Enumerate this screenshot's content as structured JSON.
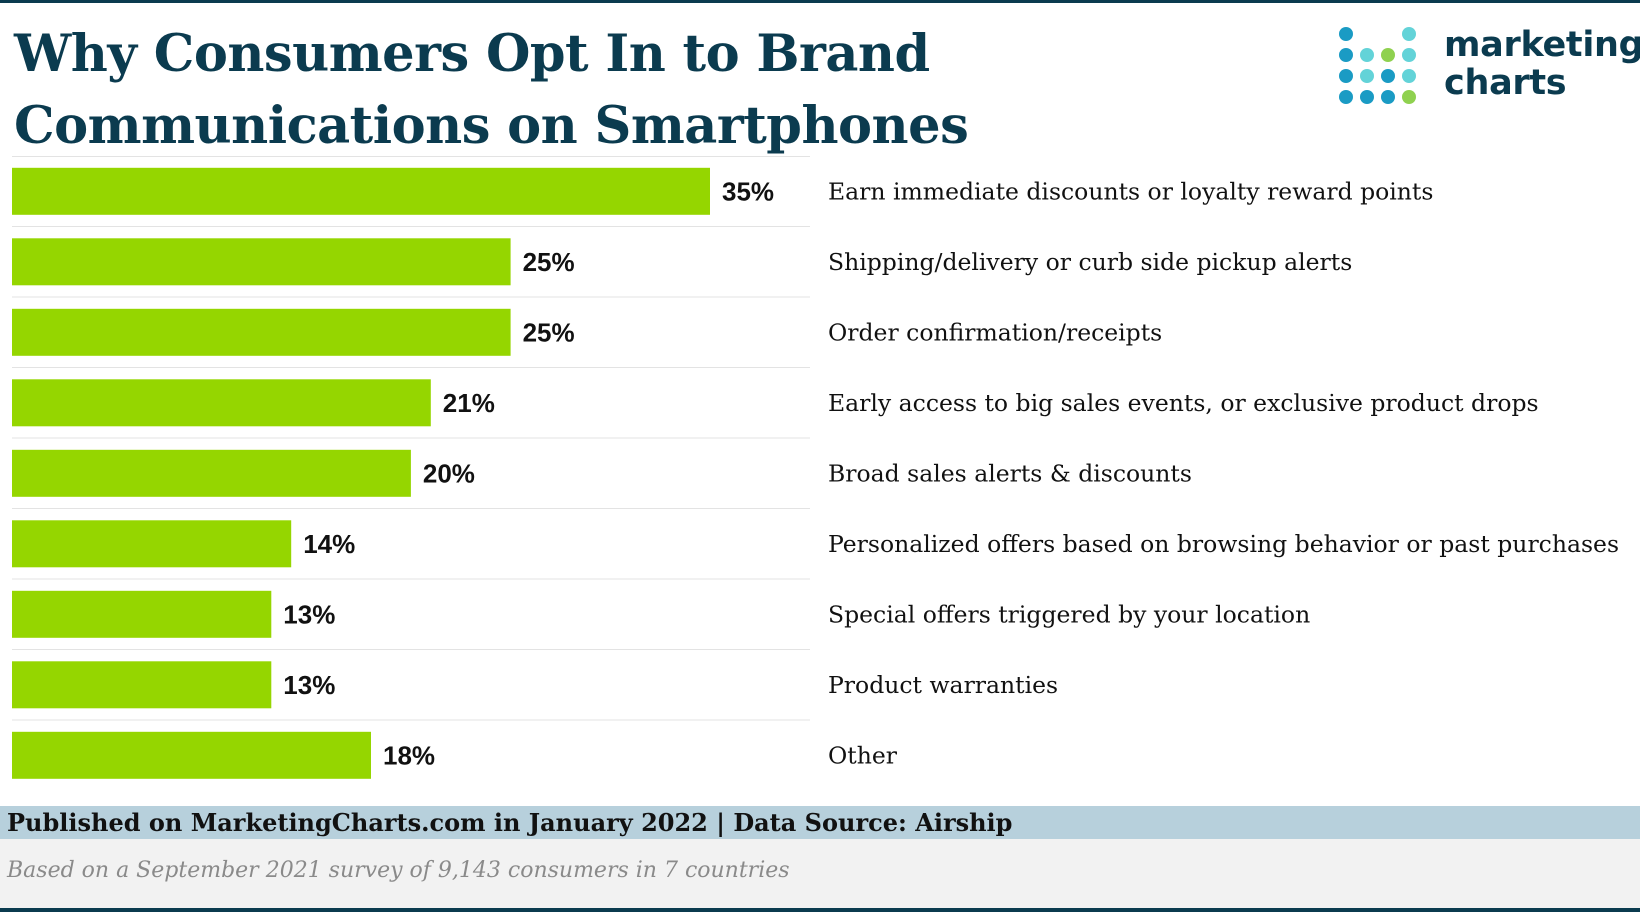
{
  "title": "Why Consumers Opt In to Brand Communications on Smartphones",
  "logo": {
    "line1": "marketing",
    "line2": "charts"
  },
  "colors": {
    "bar": "#95d600",
    "title": "#0b3b4f",
    "grid": "#e3e3e3"
  },
  "chart_data": {
    "type": "bar",
    "orientation": "horizontal",
    "title": "Why Consumers Opt In to Brand Communications on Smartphones",
    "categories": [
      "Earn immediate discounts or loyalty reward points",
      "Shipping/delivery or curb side pickup alerts",
      "Order confirmation/receipts",
      "Early access to big sales events, or exclusive product drops",
      "Broad sales alerts & discounts",
      "Personalized offers based on browsing behavior or past purchases",
      "Special offers triggered by your location",
      "Product warranties",
      "Other"
    ],
    "values": [
      35,
      25,
      25,
      21,
      20,
      14,
      13,
      13,
      18
    ],
    "value_labels": [
      "35%",
      "25%",
      "25%",
      "21%",
      "20%",
      "14%",
      "13%",
      "13%",
      "18%"
    ],
    "unit": "%",
    "xlim": [
      0,
      40
    ],
    "grid": false,
    "legend": "none"
  },
  "footer": {
    "published": "Published on MarketingCharts.com in January 2022 | Data Source: Airship",
    "note": "Based on a September 2021 survey of 9,143 consumers in 7 countries"
  }
}
